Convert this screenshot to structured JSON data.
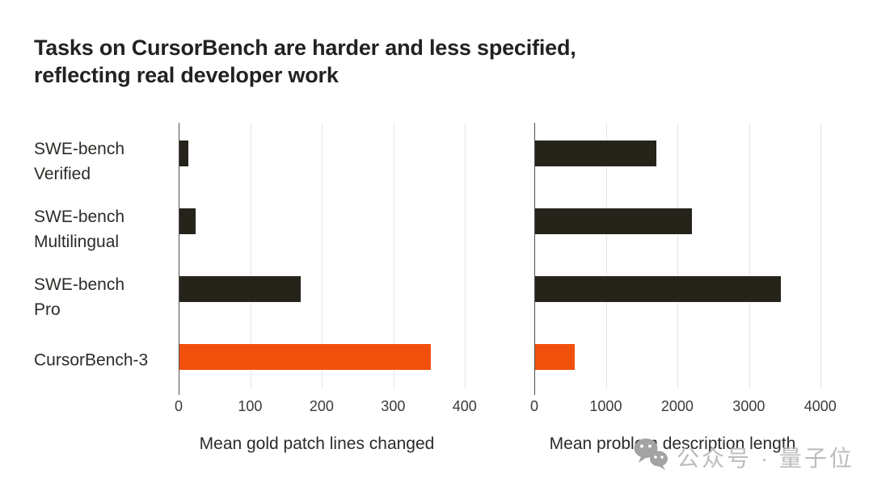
{
  "title": {
    "line1": "Tasks on CursorBench are harder and less specified,",
    "line2": "reflecting real developer work"
  },
  "colors": {
    "dark_bar": "#26231b",
    "accent_bar": "#f1500c",
    "gridline": "#e6e6e6",
    "axis": "#4f4f4f",
    "watermark": "#bcbcbc"
  },
  "watermark": {
    "icon": "wechat-icon",
    "text": "公众号 · 量子位"
  },
  "chart_data": {
    "type": "bar",
    "orientation": "horizontal",
    "title": "Tasks on CursorBench are harder and less specified, reflecting real developer work",
    "categories": [
      "SWE-bench Verified",
      "SWE-bench Multilingual",
      "SWE-bench Pro",
      "CursorBench-3"
    ],
    "category_lines": [
      [
        "SWE-bench",
        "Verified"
      ],
      [
        "SWE-bench",
        "Multilingual"
      ],
      [
        "SWE-bench",
        "Pro"
      ],
      [
        "CursorBench-3"
      ]
    ],
    "highlight_category": "CursorBench-3",
    "highlight_index": 3,
    "grid": true,
    "legend": false,
    "charts": [
      {
        "xlabel": "Mean gold patch lines changed",
        "values": [
          13,
          23,
          170,
          352
        ],
        "ticks": [
          0,
          100,
          200,
          300,
          400
        ],
        "xmax": 450
      },
      {
        "xlabel": "Mean problem description length",
        "values": [
          1700,
          2200,
          3450,
          555
        ],
        "ticks": [
          0,
          1000,
          2000,
          3000,
          4000
        ],
        "xmax": 4500
      }
    ]
  }
}
